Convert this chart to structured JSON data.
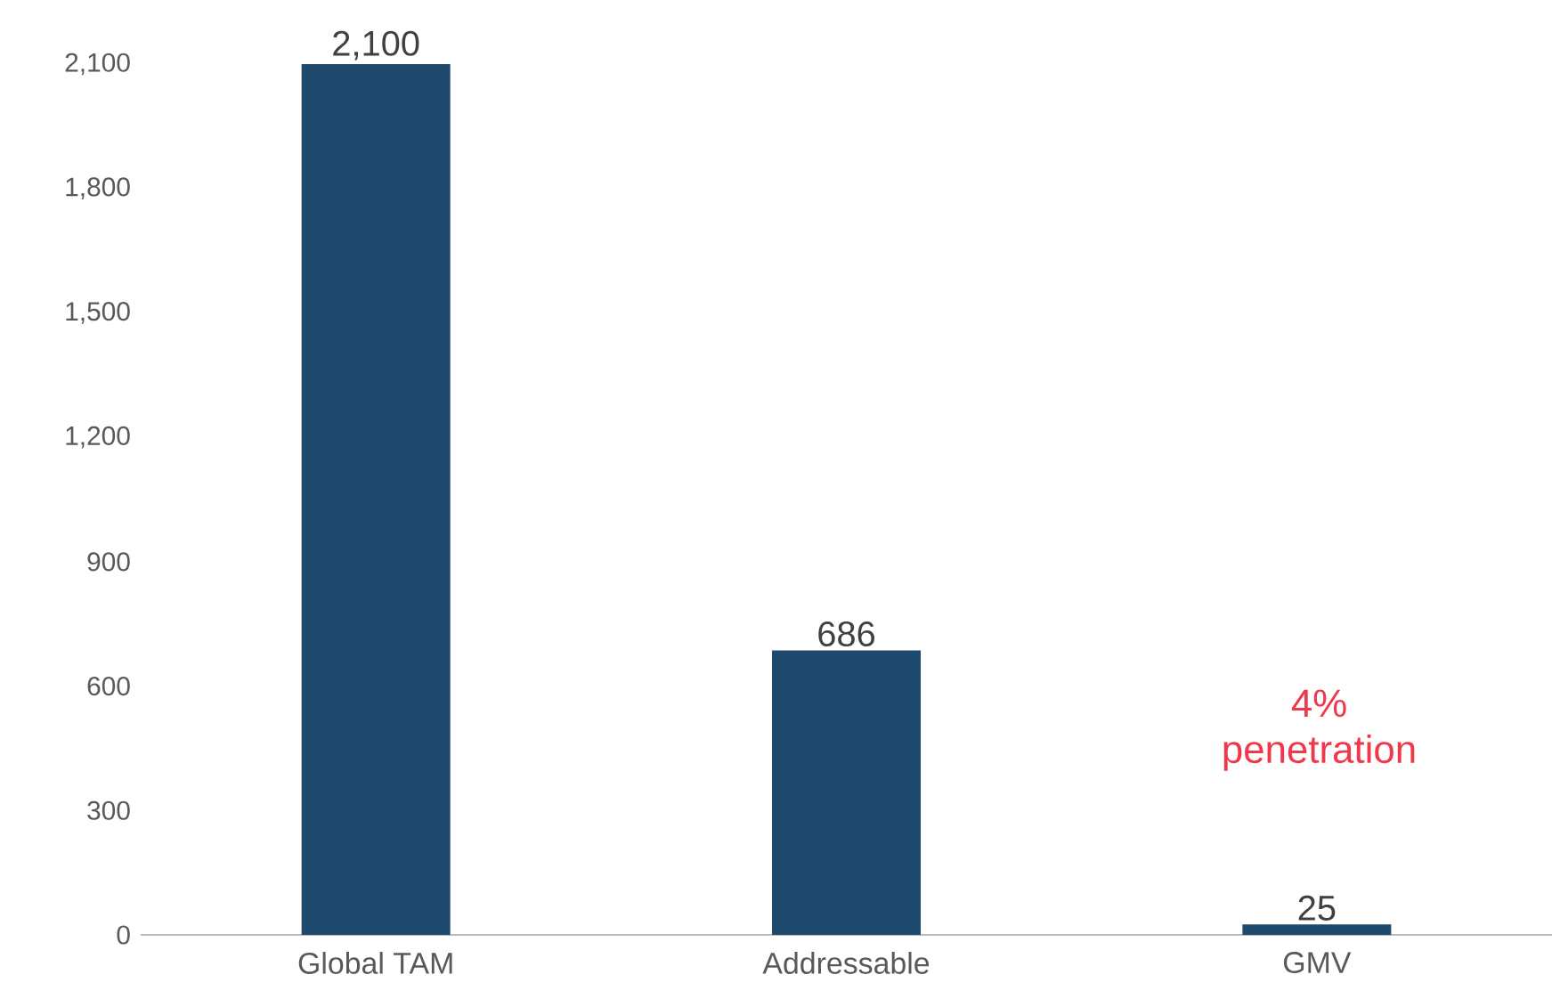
{
  "chart_data": {
    "type": "bar",
    "categories": [
      "Global TAM",
      "Addressable",
      "GMV"
    ],
    "values": [
      2100,
      686,
      25
    ],
    "value_labels": [
      "2,100",
      "686",
      "25"
    ],
    "color": "#1f496d",
    "ylim": [
      0,
      2100
    ],
    "yticks": [
      0,
      300,
      600,
      900,
      {
        "value": 1200,
        "label": "1,200"
      },
      {
        "value": 1500,
        "label": "1,500"
      },
      {
        "value": 1800,
        "label": "1,800"
      },
      {
        "value": 2100,
        "label": "2,100"
      }
    ],
    "grid": false,
    "annotations": [
      "4% penetration"
    ]
  }
}
